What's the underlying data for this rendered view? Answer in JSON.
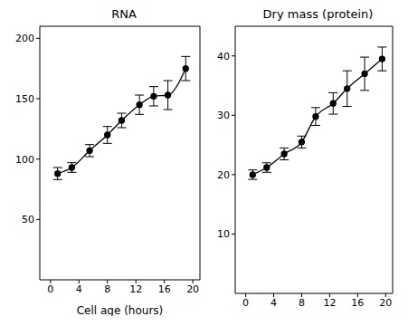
{
  "chart_data": [
    {
      "type": "line",
      "title": "RNA",
      "x_label": "Cell age (hours)",
      "x": [
        1,
        3,
        5.5,
        8,
        10,
        12.5,
        14.5,
        16.5,
        19
      ],
      "series": [
        {
          "name": "RNA",
          "color": "#000000",
          "marker": "circle",
          "line_style": "solid",
          "values": [
            88,
            93,
            107,
            120,
            132,
            145,
            152,
            153,
            175
          ],
          "errors": [
            5,
            4,
            5,
            7,
            6,
            8,
            8,
            12,
            10
          ]
        }
      ],
      "xlim": [
        -1.5,
        21
      ],
      "xticks": [
        0,
        4,
        8,
        12,
        16,
        20
      ],
      "ylim": [
        0,
        210
      ],
      "yticks": [
        50,
        100,
        150,
        200
      ]
    },
    {
      "type": "line",
      "title": "Dry mass (protein)",
      "x": [
        1,
        3,
        5.5,
        8,
        10,
        12.5,
        14.5,
        17,
        19.5
      ],
      "series": [
        {
          "name": "Dry mass (protein)",
          "color": "#000000",
          "marker": "circle",
          "line_style": "solid",
          "values": [
            20,
            21.2,
            23.5,
            25.5,
            29.8,
            32,
            34.5,
            37,
            39.5
          ],
          "errors": [
            0.8,
            0.8,
            1,
            1,
            1.5,
            1.8,
            3,
            2.8,
            2
          ]
        }
      ],
      "xlim": [
        -1.5,
        21
      ],
      "xticks": [
        0,
        4,
        8,
        12,
        16,
        20
      ],
      "ylim": [
        0,
        45
      ],
      "yticks": [
        10,
        20,
        30,
        40
      ]
    }
  ]
}
